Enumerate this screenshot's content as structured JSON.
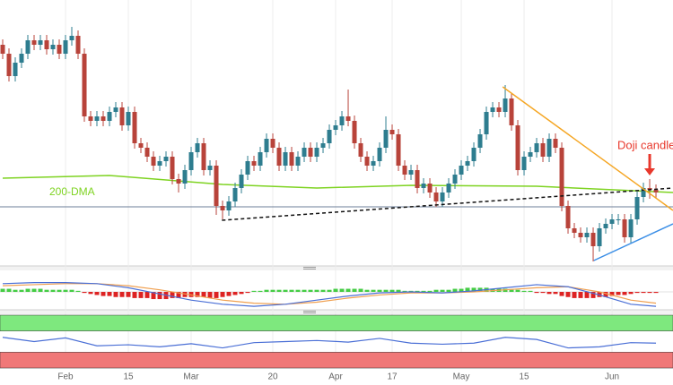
{
  "chart_data": {
    "type": "candlestick",
    "categories": [
      null,
      null,
      null,
      null,
      null,
      null,
      null,
      null,
      null,
      null,
      "Feb",
      null,
      null,
      null,
      null,
      null,
      null,
      null,
      null,
      null,
      "15",
      null,
      null,
      null,
      null,
      null,
      null,
      null,
      null,
      null,
      "Mar",
      null,
      null,
      null,
      null,
      null,
      null,
      null,
      null,
      null,
      null,
      null,
      null,
      "20",
      null,
      null,
      null,
      null,
      null,
      null,
      null,
      null,
      null,
      "Apr",
      null,
      null,
      null,
      null,
      null,
      null,
      null,
      null,
      "17",
      null,
      null,
      null,
      null,
      null,
      null,
      null,
      null,
      null,
      null,
      "May",
      null,
      null,
      null,
      null,
      null,
      null,
      null,
      null,
      null,
      "15",
      null,
      null,
      null,
      null,
      null,
      null,
      null,
      null,
      null,
      null,
      null,
      null,
      null,
      "Jun",
      null,
      null,
      null,
      null,
      null,
      null,
      null
    ],
    "xlim": [
      -0.43,
      106.71
    ],
    "ylim": [
      0,
      300
    ],
    "up_color": "#2e7d8f",
    "down_color": "#b8433a",
    "open": [
      250,
      240,
      215,
      230,
      240,
      255,
      250,
      255,
      245,
      250,
      240,
      255,
      260,
      240,
      170,
      165,
      170,
      165,
      175,
      180,
      160,
      175,
      140,
      135,
      125,
      115,
      120,
      125,
      100,
      95,
      110,
      130,
      140,
      110,
      115,
      70,
      65,
      75,
      90,
      105,
      120,
      115,
      130,
      145,
      135,
      115,
      130,
      115,
      125,
      135,
      125,
      135,
      140,
      155,
      160,
      170,
      165,
      140,
      125,
      115,
      120,
      135,
      155,
      150,
      115,
      105,
      110,
      90,
      95,
      85,
      75,
      85,
      95,
      105,
      115,
      120,
      135,
      150,
      175,
      180,
      175,
      190,
      160,
      110,
      125,
      130,
      140,
      125,
      145,
      135,
      70,
      45,
      40,
      35,
      40,
      25,
      45,
      50,
      55,
      55,
      35,
      55,
      80,
      90,
      88
    ],
    "high": [
      256,
      246,
      236,
      246,
      261,
      261,
      261,
      261,
      256,
      256,
      261,
      270,
      266,
      246,
      176,
      176,
      176,
      181,
      186,
      186,
      181,
      181,
      146,
      141,
      131,
      126,
      131,
      131,
      106,
      116,
      136,
      146,
      146,
      121,
      121,
      76,
      81,
      96,
      111,
      126,
      126,
      136,
      151,
      151,
      141,
      136,
      136,
      131,
      141,
      141,
      141,
      146,
      161,
      166,
      176,
      200,
      171,
      146,
      131,
      126,
      141,
      170,
      161,
      156,
      121,
      116,
      116,
      101,
      101,
      91,
      91,
      101,
      111,
      121,
      126,
      141,
      156,
      181,
      186,
      186,
      205,
      196,
      166,
      131,
      136,
      146,
      146,
      151,
      151,
      141,
      76,
      51,
      46,
      46,
      46,
      51,
      56,
      61,
      61,
      61,
      61,
      86,
      96,
      100,
      94
    ],
    "low": [
      234,
      209,
      209,
      224,
      234,
      244,
      244,
      239,
      239,
      234,
      234,
      249,
      234,
      164,
      159,
      159,
      159,
      159,
      169,
      154,
      154,
      134,
      129,
      119,
      109,
      109,
      114,
      94,
      85,
      89,
      104,
      124,
      104,
      104,
      60,
      55,
      59,
      69,
      84,
      99,
      109,
      109,
      124,
      129,
      109,
      109,
      109,
      109,
      119,
      119,
      119,
      129,
      134,
      149,
      154,
      159,
      134,
      119,
      109,
      109,
      114,
      129,
      144,
      109,
      99,
      99,
      84,
      84,
      79,
      69,
      69,
      79,
      89,
      99,
      109,
      114,
      129,
      144,
      169,
      169,
      169,
      154,
      104,
      104,
      119,
      124,
      119,
      119,
      129,
      64,
      39,
      34,
      29,
      29,
      8,
      19,
      39,
      44,
      49,
      29,
      29,
      49,
      74,
      78,
      79
    ],
    "close": [
      240,
      215,
      230,
      240,
      255,
      250,
      255,
      245,
      250,
      240,
      255,
      260,
      240,
      170,
      165,
      170,
      165,
      175,
      180,
      160,
      175,
      140,
      135,
      125,
      115,
      120,
      125,
      100,
      95,
      110,
      130,
      140,
      110,
      115,
      70,
      65,
      75,
      90,
      105,
      120,
      115,
      130,
      145,
      135,
      115,
      130,
      115,
      125,
      135,
      125,
      135,
      140,
      155,
      160,
      170,
      165,
      140,
      125,
      115,
      120,
      135,
      155,
      150,
      115,
      105,
      110,
      90,
      95,
      85,
      75,
      85,
      95,
      105,
      115,
      120,
      135,
      150,
      175,
      180,
      175,
      190,
      160,
      110,
      125,
      130,
      140,
      125,
      145,
      135,
      70,
      45,
      40,
      35,
      40,
      25,
      45,
      50,
      55,
      55,
      35,
      55,
      80,
      90,
      88,
      85
    ],
    "overlays": [
      {
        "name": "200-DMA",
        "color": "#7ed321",
        "x": [
          0,
          17,
          35,
          50,
          65,
          85,
          106.71
        ],
        "values": [
          101,
          104,
          94,
          90,
          93,
          92,
          85
        ]
      }
    ],
    "trend_lines": [
      {
        "color": "#111111",
        "dash": true,
        "x": [
          34.9,
          106.71
        ],
        "values": [
          54,
          90
        ]
      },
      {
        "color": "#f5a623",
        "dash": false,
        "x": [
          79.6,
          106.71
        ],
        "values": [
          203,
          65
        ]
      },
      {
        "color": "#3a8ee6",
        "dash": false,
        "x": [
          94.1,
          106.71
        ],
        "values": [
          9,
          50
        ]
      }
    ],
    "level": {
      "value": 69,
      "color": "#6d7f99"
    },
    "annotation": {
      "text": "Doji candlestick",
      "index": 103,
      "color": "#e8382c"
    },
    "macd": {
      "ylim": [
        -20,
        20
      ],
      "x": [
        0,
        5,
        10,
        15,
        20,
        25,
        30,
        35,
        40,
        45,
        50,
        55,
        60,
        65,
        70,
        75,
        80,
        85,
        90,
        95,
        100,
        104
      ],
      "macd": [
        8,
        9,
        9,
        8,
        4,
        -2,
        -8,
        -12,
        -14,
        -12,
        -8,
        -4,
        -1,
        0,
        -1,
        1,
        4,
        7,
        5,
        -3,
        -12,
        -14
      ],
      "signal": [
        6,
        7,
        8,
        8,
        6,
        2,
        -3,
        -8,
        -11,
        -12,
        -10,
        -6,
        -3,
        -1,
        -1,
        0,
        2,
        4,
        5,
        0,
        -8,
        -11
      ],
      "histogram": [
        3,
        3,
        2,
        2,
        3,
        3,
        3,
        2,
        2,
        2,
        2,
        2,
        1,
        -1,
        -2,
        -3,
        -4,
        -4,
        -5,
        -5,
        -5,
        -6,
        -6,
        -6,
        -7,
        -7,
        -7,
        -6,
        -6,
        -5,
        -5,
        -5,
        -5,
        -6,
        -6,
        -5,
        -4,
        -3,
        -2,
        -1,
        1,
        1,
        2,
        2,
        2,
        2,
        2,
        2,
        2,
        2,
        2,
        2,
        2,
        3,
        3,
        3,
        3,
        3,
        2,
        2,
        2,
        2,
        2,
        2,
        1,
        1,
        1,
        1,
        1,
        2,
        2,
        2,
        3,
        3,
        4,
        4,
        4,
        4,
        3,
        3,
        3,
        2,
        2,
        1,
        1,
        -1,
        -1,
        -2,
        -2,
        -4,
        -5,
        -6,
        -6,
        -6,
        -6,
        -5,
        -5,
        -4,
        -3,
        -3,
        -2,
        -1,
        -1,
        -1,
        -1
      ],
      "macd_color": "#4a6fd6",
      "signal_color": "#f0a050",
      "pos_color": "#44cc44",
      "neg_color": "#dd2222"
    },
    "rsi": {
      "ylim": [
        0,
        100
      ],
      "upper": 70,
      "lower": 30,
      "x": [
        0,
        5,
        10,
        15,
        20,
        25,
        30,
        35,
        40,
        45,
        50,
        55,
        60,
        65,
        70,
        75,
        80,
        85,
        90,
        95,
        100,
        104
      ],
      "values": [
        58,
        50,
        57,
        42,
        44,
        40,
        46,
        38,
        48,
        50,
        52,
        49,
        56,
        47,
        45,
        47,
        58,
        54,
        38,
        40,
        48,
        47
      ],
      "color": "#4a6fd6",
      "upper_color": "#7ee87e",
      "lower_color": "#f07878"
    }
  }
}
